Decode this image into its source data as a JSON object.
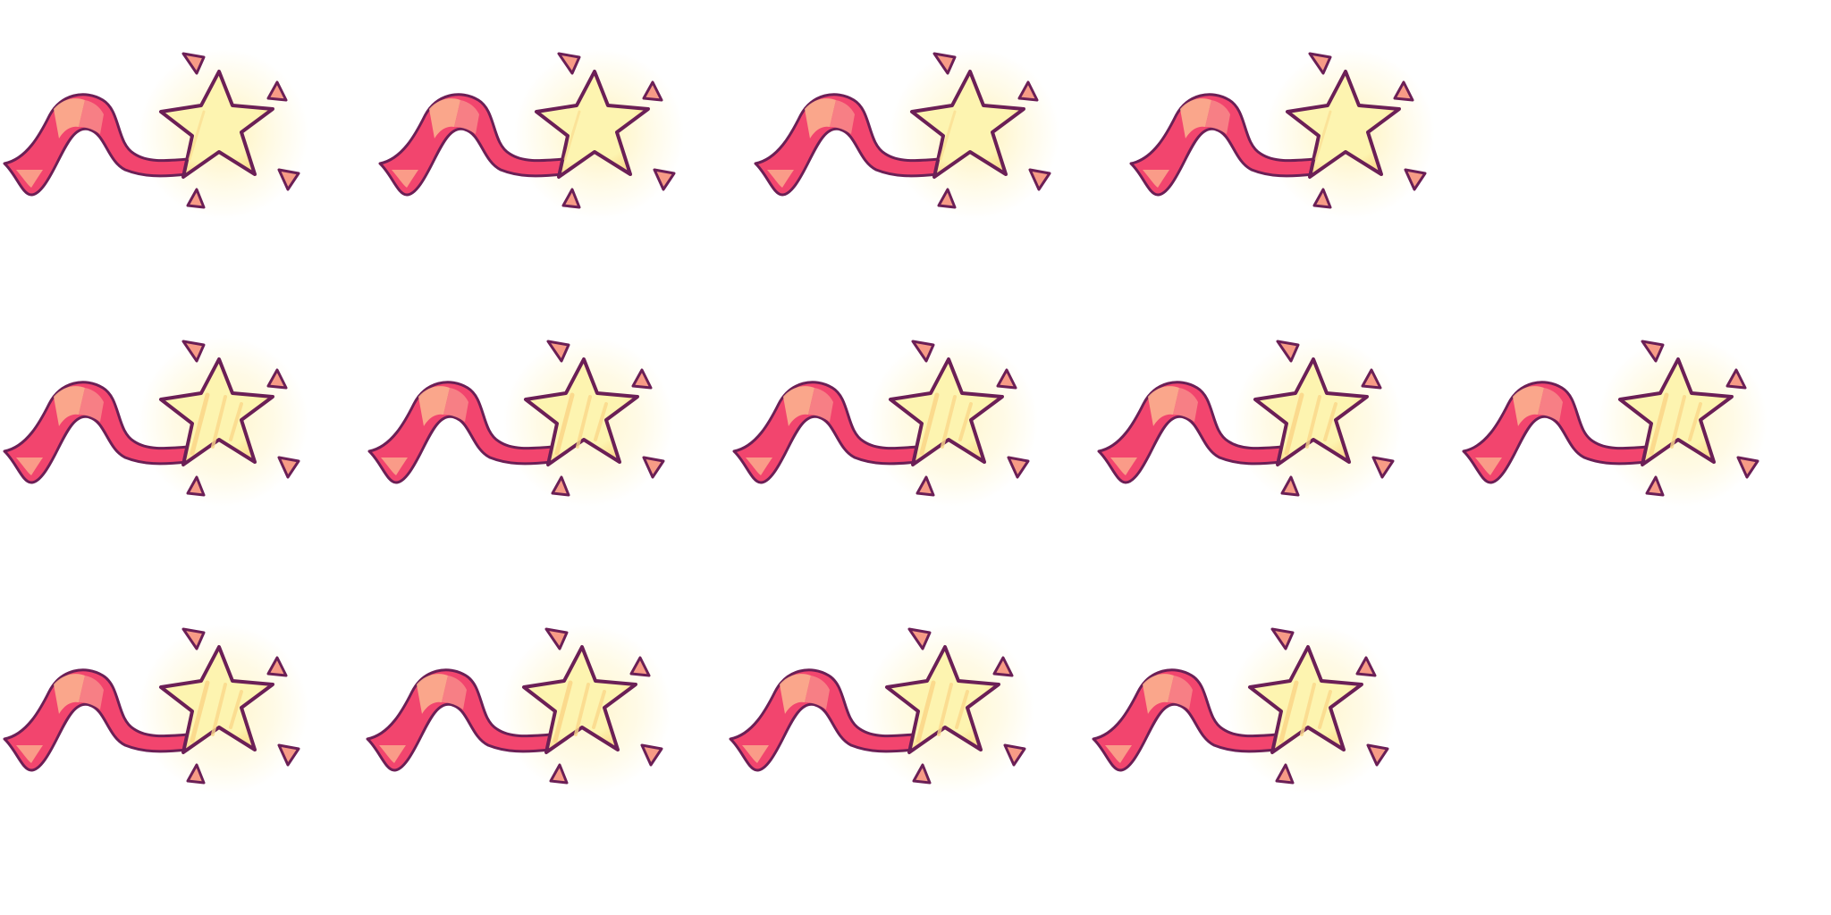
{
  "sprite_sheet": {
    "subject": "shooting-star-with-ribbon-trail",
    "colors": {
      "outline": "#6b1f56",
      "ribbon": "#f2456e",
      "ribbon_light": "#fbb08e",
      "ribbon_mid": "#f88a8a",
      "star_core": "#fdf4b0",
      "star_edge": "#fbd88a",
      "glow": "#fff2b8",
      "shard": "#f79b86",
      "background": "#ffffff"
    },
    "rows": [
      {
        "row": 1,
        "frame_count": 4,
        "variant": "bright-glow"
      },
      {
        "row": 2,
        "frame_count": 5,
        "variant": "striped-star"
      },
      {
        "row": 3,
        "frame_count": 4,
        "variant": "striped-star"
      }
    ]
  }
}
